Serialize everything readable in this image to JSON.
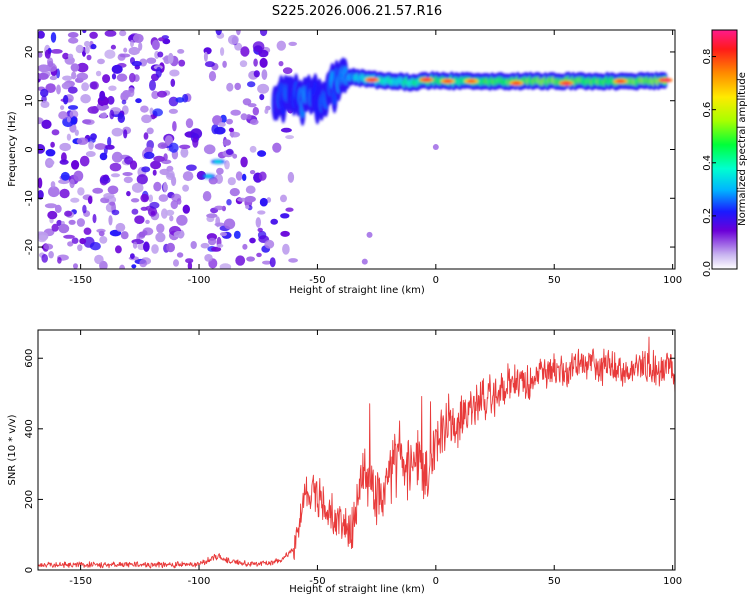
{
  "chart_data": [
    {
      "type": "heatmap",
      "title": "S225.2026.006.21.57.R16",
      "xlabel": "Height of straight line (km)",
      "ylabel": "Frequency (Hz)",
      "xlim": [
        -168,
        101
      ],
      "ylim": [
        -24.5,
        24.5
      ],
      "xticks": [
        -150,
        -100,
        -50,
        0,
        50,
        100
      ],
      "yticks": [
        -20,
        -10,
        0,
        10,
        20
      ],
      "colorbar": {
        "label": "Normalized spectral amplitude",
        "range": [
          0,
          0.9
        ],
        "ticks": [
          0.0,
          0.2,
          0.4,
          0.6,
          0.8
        ]
      },
      "ridge": [
        {
          "x": -68,
          "y": 10.5,
          "amp": 0.3
        },
        {
          "x": -60,
          "y": 10.0,
          "amp": 0.32
        },
        {
          "x": -50,
          "y": 10.5,
          "amp": 0.32
        },
        {
          "x": -40,
          "y": 13.5,
          "amp": 0.34
        },
        {
          "x": -35,
          "y": 15.0,
          "amp": 0.38
        },
        {
          "x": -30,
          "y": 14.5,
          "amp": 0.52
        },
        {
          "x": -20,
          "y": 14.0,
          "amp": 0.48
        },
        {
          "x": -10,
          "y": 13.8,
          "amp": 0.55
        },
        {
          "x": 0,
          "y": 14.2,
          "amp": 0.62
        },
        {
          "x": 10,
          "y": 14.0,
          "amp": 0.58
        },
        {
          "x": 20,
          "y": 14.0,
          "amp": 0.62
        },
        {
          "x": 30,
          "y": 14.0,
          "amp": 0.65
        },
        {
          "x": 40,
          "y": 14.0,
          "amp": 0.66
        },
        {
          "x": 50,
          "y": 14.0,
          "amp": 0.68
        },
        {
          "x": 60,
          "y": 14.0,
          "amp": 0.65
        },
        {
          "x": 70,
          "y": 14.0,
          "amp": 0.64
        },
        {
          "x": 80,
          "y": 14.0,
          "amp": 0.66
        },
        {
          "x": 90,
          "y": 14.0,
          "amp": 0.68
        },
        {
          "x": 97,
          "y": 14.0,
          "amp": 0.7
        }
      ],
      "hotspots": [
        {
          "x": -92,
          "y": -2.5,
          "amp": 0.35
        },
        {
          "x": -96,
          "y": -5.5,
          "amp": 0.33
        },
        {
          "x": -27,
          "y": 14.3,
          "amp": 0.85
        },
        {
          "x": -4,
          "y": 14.3,
          "amp": 0.85
        },
        {
          "x": 5,
          "y": 14.0,
          "amp": 0.82
        },
        {
          "x": 15,
          "y": 14.0,
          "amp": 0.8
        },
        {
          "x": 34,
          "y": 13.6,
          "amp": 0.82
        },
        {
          "x": 55,
          "y": 13.6,
          "amp": 0.85
        },
        {
          "x": 78,
          "y": 14.0,
          "amp": 0.82
        },
        {
          "x": 97,
          "y": 14.2,
          "amp": 0.88
        }
      ]
    },
    {
      "type": "line",
      "xlabel": "Height of straight line (km)",
      "ylabel": "SNR (10 * v/v)",
      "xlim": [
        -168,
        101
      ],
      "ylim": [
        0,
        680
      ],
      "xticks": [
        -150,
        -100,
        -50,
        0,
        50,
        100
      ],
      "yticks": [
        0,
        200,
        400,
        600
      ],
      "color": "#e83a3a",
      "series": [
        {
          "x": [
            -168,
            -150,
            -120,
            -100,
            -92,
            -88,
            -80,
            -70,
            -65,
            -60,
            -57,
            -55,
            -52,
            -50,
            -47,
            -45,
            -42,
            -40,
            -37,
            -35,
            -33,
            -31,
            -28,
            -25,
            -22,
            -20,
            -17,
            -15,
            -12,
            -10,
            -8,
            -5,
            -3,
            0,
            5,
            10,
            15,
            20,
            25,
            30,
            35,
            40,
            45,
            50,
            55,
            60,
            65,
            70,
            75,
            80,
            85,
            90,
            95,
            98,
            101
          ],
          "values": [
            15,
            15,
            15,
            16,
            40,
            25,
            18,
            20,
            30,
            60,
            170,
            210,
            230,
            200,
            190,
            160,
            150,
            150,
            130,
            110,
            200,
            280,
            220,
            190,
            230,
            260,
            300,
            320,
            300,
            310,
            330,
            250,
            260,
            360,
            420,
            430,
            450,
            480,
            500,
            520,
            540,
            540,
            560,
            570,
            560,
            580,
            580,
            570,
            580,
            560,
            580,
            570,
            560,
            600,
            520
          ]
        }
      ]
    }
  ]
}
